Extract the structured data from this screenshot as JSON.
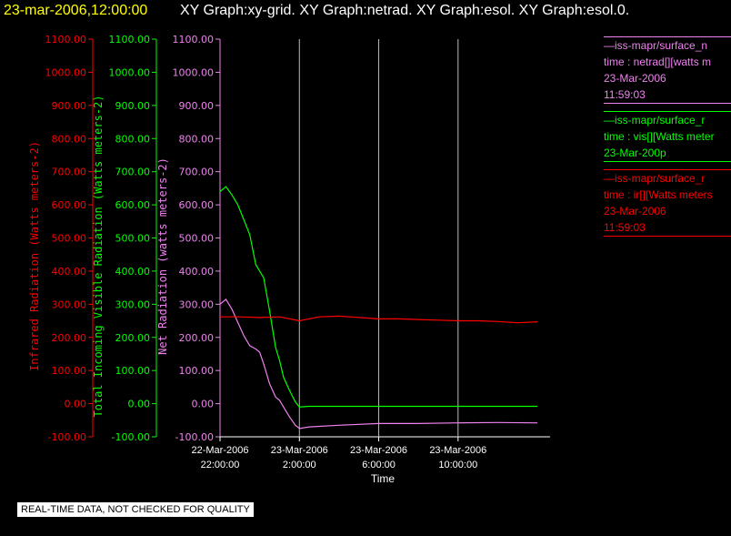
{
  "header": {
    "date": "23-mar-2006,12:00:00",
    "titles": "XY Graph:xy-grid.  XY Graph:netrad.  XY Graph:esol.  XY Graph:esol.0."
  },
  "legend": [
    {
      "line1": "—iss-mapr/surface_n",
      "line2": "time : netrad[][watts m",
      "line3": "23-Mar-2006",
      "line4": "11:59:03",
      "color": "#ee82ee"
    },
    {
      "line1": "—iss-mapr/surface_r",
      "line2": "time : vis[][Watts meter",
      "line3": "23-Mar-200p",
      "line4": "",
      "color": "#00ff00"
    },
    {
      "line1": "—iss-mapr/surface_r",
      "line2": "time : ir[][Watts meters",
      "line3": "23-Mar-2006",
      "line4": "11:59:03",
      "color": "#ff0000"
    }
  ],
  "notice": "REAL-TIME DATA, NOT CHECKED FOR QUALITY",
  "chart_data": {
    "type": "line",
    "xlabel": "Time",
    "x_ticks": [
      {
        "date": "22-Mar-2006",
        "time": "22:00:00",
        "hour": 0
      },
      {
        "date": "23-Mar-2006",
        "time": "2:00:00",
        "hour": 4
      },
      {
        "date": "23-Mar-2006",
        "time": "6:00:00",
        "hour": 8
      },
      {
        "date": "23-Mar-2006",
        "time": "10:00:00",
        "hour": 12
      }
    ],
    "xlim_hours": [
      0,
      16.5
    ],
    "grid": "vertical",
    "axes": [
      {
        "label": "Infrared Radiation (Watts meters-2)",
        "color": "#ff0000",
        "ylim": [
          -100,
          1100
        ]
      },
      {
        "label": "Total Incoming Visible Radiation (Watts meters-2)",
        "color": "#00ff00",
        "ylim": [
          -100,
          1100
        ]
      },
      {
        "label": "Net Radiation (watts meters-2)",
        "color": "#ee82ee",
        "ylim": [
          -100,
          1100
        ]
      }
    ],
    "y_ticks": [
      "1100.00",
      "1000.00",
      "900.00",
      "800.00",
      "700.00",
      "600.00",
      "500.00",
      "400.00",
      "300.00",
      "200.00",
      "100.00",
      "0.00",
      "-100.00"
    ],
    "series": [
      {
        "key": "vis",
        "color": "#00ff00",
        "x": [
          0.0,
          0.3,
          0.6,
          0.9,
          1.2,
          1.5,
          1.8,
          2.0,
          2.2,
          2.5,
          2.8,
          3.0,
          3.2,
          3.5,
          3.8,
          4.0,
          4.5,
          6.0,
          8.0,
          10.0,
          12.0,
          14.0,
          16.0
        ],
        "y": [
          640,
          655,
          630,
          600,
          555,
          510,
          420,
          400,
          380,
          280,
          170,
          130,
          80,
          40,
          5,
          -10,
          -8,
          -8,
          -8,
          -8,
          -8,
          -8,
          -8
        ]
      },
      {
        "key": "netrad",
        "color": "#ee82ee",
        "x": [
          0.0,
          0.3,
          0.6,
          0.9,
          1.2,
          1.5,
          1.8,
          2.0,
          2.2,
          2.5,
          2.8,
          3.0,
          3.2,
          3.5,
          3.8,
          4.0,
          4.5,
          6.0,
          8.0,
          10.0,
          12.0,
          14.0,
          16.0
        ],
        "y": [
          300,
          315,
          285,
          245,
          205,
          175,
          165,
          155,
          120,
          60,
          20,
          10,
          -10,
          -40,
          -65,
          -75,
          -70,
          -65,
          -60,
          -60,
          -58,
          -57,
          -58
        ]
      },
      {
        "key": "ir",
        "color": "#ff0000",
        "x": [
          0.0,
          1.0,
          2.0,
          3.0,
          4.0,
          5.0,
          6.0,
          7.0,
          8.0,
          9.0,
          10.0,
          11.0,
          12.0,
          13.0,
          14.0,
          15.0,
          16.0
        ],
        "y": [
          262,
          262,
          260,
          262,
          250,
          262,
          264,
          260,
          256,
          256,
          254,
          252,
          250,
          250,
          248,
          244,
          247
        ]
      }
    ]
  }
}
